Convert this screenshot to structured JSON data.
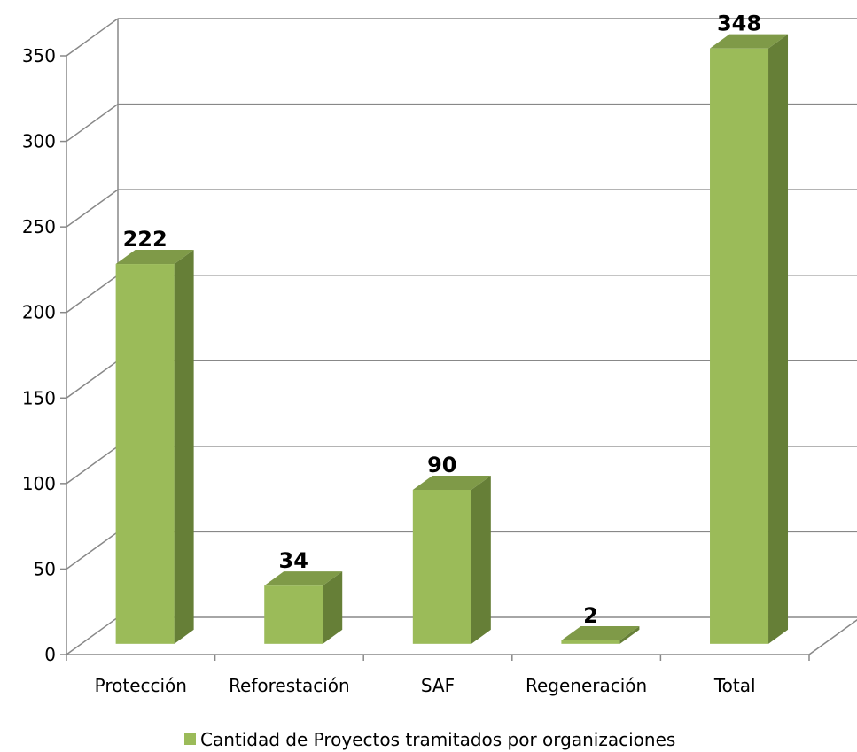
{
  "chart_data": {
    "type": "bar3d",
    "categories": [
      "Protección",
      "Reforestación",
      "SAF",
      "Regeneración",
      "Total"
    ],
    "series": [
      {
        "name": "Cantidad de Proyectos tramitados por organizaciones",
        "color": "#9bbb59",
        "values": [
          222,
          34,
          90,
          2,
          348
        ]
      }
    ],
    "ylim": [
      0,
      350
    ],
    "yticks": [
      0,
      50,
      100,
      150,
      200,
      250,
      300,
      350
    ],
    "grid": true,
    "legend": "bottom"
  }
}
